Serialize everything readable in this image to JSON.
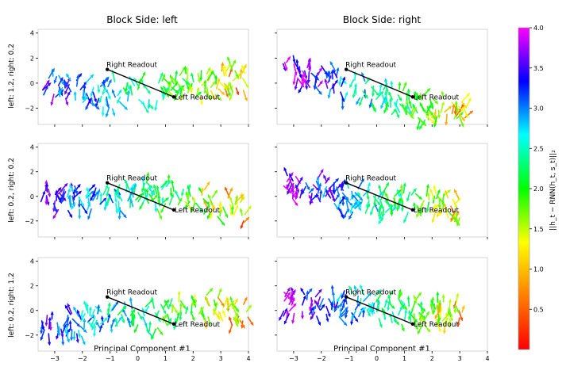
{
  "chart_data": {
    "type": "quiver",
    "column_titles": [
      "Block Side: left",
      "Block Side: right"
    ],
    "row_labels": [
      "left: 1.2, right: 0.2",
      "left: 0.2, right: 0.2",
      "left: 0.2, right: 1.2"
    ],
    "xlabel": "Principal Component #1",
    "xlim": [
      -3.6,
      4.0
    ],
    "ylim": [
      -3.3,
      4.3
    ],
    "xticks": [
      -3,
      -2,
      -1,
      0,
      1,
      2,
      3,
      4
    ],
    "yticks": [
      -2,
      0,
      2,
      4
    ],
    "grid": false,
    "readout_line": {
      "right": {
        "x": -1.1,
        "y": 1.1,
        "label": "Right Readout"
      },
      "left": {
        "x": 1.3,
        "y": -1.1,
        "label": "Left Readout"
      }
    },
    "colorbar": {
      "label": "||h_t − RNN(h_t, s_t)||₂",
      "range": [
        0.0,
        4.0
      ],
      "ticks": [
        0.5,
        1.0,
        1.5,
        2.0,
        2.5,
        3.0,
        3.5,
        4.0
      ],
      "colormap": "gist_rainbow",
      "colors": [
        "#ff0000",
        "#ff7f00",
        "#ffff00",
        "#00ff00",
        "#00ffff",
        "#0000ff",
        "#ff00ff"
      ]
    }
  },
  "axes_ticks": {
    "xtick_labels": [
      "−3",
      "−2",
      "−1",
      "0",
      "1",
      "2",
      "3",
      "4"
    ],
    "ytick_labels": [
      "−2",
      "0",
      "2",
      "4"
    ],
    "colorbar_tick_labels": [
      "0.5",
      "1.0",
      "1.5",
      "2.0",
      "2.5",
      "3.0",
      "3.5",
      "4.0"
    ]
  }
}
